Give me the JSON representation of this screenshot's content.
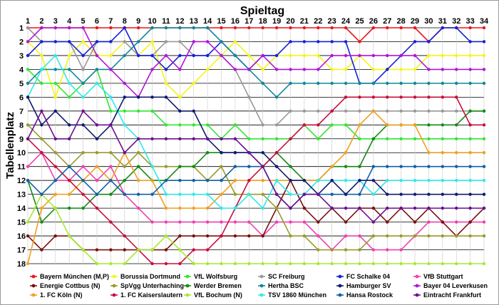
{
  "chart_data": {
    "type": "line",
    "title": "Spieltag",
    "xlabel": "Spieltag",
    "ylabel": "Tabellenplatz",
    "x": [
      1,
      2,
      3,
      4,
      5,
      6,
      7,
      8,
      9,
      10,
      11,
      12,
      13,
      14,
      15,
      16,
      17,
      18,
      19,
      20,
      21,
      22,
      23,
      24,
      25,
      26,
      27,
      28,
      29,
      30,
      31,
      32,
      33,
      34
    ],
    "xlim": [
      1,
      34
    ],
    "ylim": [
      1,
      18
    ],
    "y_inverted": true,
    "grid": true,
    "legend_position": "bottom",
    "series": [
      {
        "name": "Bayern München (M,P)",
        "color": "#e8161c",
        "values": [
          1,
          1,
          1,
          1,
          1,
          1,
          1,
          1,
          1,
          1,
          1,
          1,
          1,
          1,
          1,
          1,
          1,
          1,
          1,
          1,
          1,
          1,
          1,
          1,
          2,
          1,
          1,
          1,
          1,
          2,
          1,
          1,
          1,
          1
        ]
      },
      {
        "name": "Borussia Dortmund",
        "color": "#f5f516",
        "values": [
          2,
          3,
          6,
          3,
          2,
          3,
          3,
          2,
          3,
          2,
          5,
          6,
          5,
          4,
          3,
          2,
          3,
          4,
          3,
          3,
          3,
          3,
          4,
          4,
          3,
          4,
          4,
          4,
          4,
          3,
          3,
          3,
          3,
          3
        ]
      },
      {
        "name": "VfL Wolfsburg",
        "color": "#33e533",
        "values": [
          4,
          5,
          5,
          6,
          5,
          4,
          7,
          7,
          7,
          7,
          8,
          8,
          8,
          8,
          9,
          8,
          9,
          9,
          9,
          9,
          8,
          9,
          8,
          8,
          9,
          9,
          9,
          9,
          9,
          9,
          9,
          9,
          9,
          9
        ]
      },
      {
        "name": "SC Freiburg",
        "color": "#999999",
        "values": [
          1,
          2,
          2,
          2,
          4,
          2,
          2,
          2,
          3,
          3,
          2,
          2,
          3,
          3,
          3,
          4,
          6,
          8,
          8,
          7,
          7,
          7,
          7,
          7,
          7,
          7,
          7,
          7,
          7,
          7,
          7,
          7,
          7,
          7
        ]
      },
      {
        "name": "FC Schalke 04",
        "color": "#1522d6",
        "values": [
          3,
          2,
          2,
          2,
          3,
          2,
          2,
          1,
          3,
          3,
          4,
          3,
          3,
          3,
          2,
          3,
          4,
          3,
          3,
          2,
          2,
          2,
          2,
          2,
          5,
          5,
          4,
          3,
          2,
          2,
          1,
          1,
          2,
          2
        ]
      },
      {
        "name": "VfB Stuttgart",
        "color": "#f040b0",
        "values": [
          11,
          10,
          12,
          12,
          11,
          12,
          11,
          13,
          14,
          15,
          15,
          15,
          15,
          15,
          15,
          15,
          15,
          16,
          15,
          15,
          15,
          16,
          17,
          16,
          16,
          17,
          17,
          17,
          16,
          15,
          15,
          15,
          15,
          15
        ]
      },
      {
        "name": "Energie Cottbus (N)",
        "color": "#7a1010",
        "values": [
          16,
          17,
          16,
          16,
          17,
          17,
          17,
          17,
          17,
          17,
          17,
          16,
          16,
          16,
          16,
          16,
          16,
          16,
          14,
          12,
          14,
          15,
          14,
          15,
          14,
          14,
          15,
          14,
          15,
          14,
          15,
          16,
          15,
          14
        ]
      },
      {
        "name": "SpVgg Unterhaching",
        "color": "#9a9a2a",
        "values": [
          8,
          9,
          10,
          11,
          10,
          10,
          10,
          11,
          10,
          11,
          11,
          11,
          11,
          12,
          11,
          13,
          13,
          13,
          14,
          16,
          16,
          17,
          17,
          17,
          17,
          16,
          16,
          16,
          16,
          16,
          16,
          16,
          16,
          16
        ]
      },
      {
        "name": "Werder Bremen",
        "color": "#148a14",
        "values": [
          12,
          15,
          14,
          14,
          14,
          13,
          13,
          12,
          11,
          12,
          12,
          11,
          11,
          10,
          10,
          10,
          10,
          11,
          10,
          11,
          12,
          12,
          11,
          11,
          11,
          9,
          8,
          8,
          8,
          8,
          8,
          8,
          7,
          7
        ]
      },
      {
        "name": "Hertha BSC",
        "color": "#11889a",
        "values": [
          5,
          4,
          4,
          4,
          5,
          4,
          4,
          3,
          2,
          1,
          1,
          1,
          1,
          1,
          2,
          3,
          4,
          5,
          6,
          5,
          5,
          5,
          5,
          5,
          5,
          5,
          5,
          5,
          5,
          5,
          5,
          5,
          5,
          5
        ]
      },
      {
        "name": "Bayer 04 Leverkusen",
        "color": "#b016d8",
        "values": [
          2,
          1,
          1,
          1,
          1,
          3,
          4,
          5,
          6,
          4,
          3,
          4,
          2,
          2,
          3,
          4,
          4,
          3,
          4,
          4,
          4,
          4,
          3,
          3,
          3,
          3,
          3,
          3,
          3,
          4,
          4,
          4,
          4,
          4
        ]
      },
      {
        "name": "1. FC Köln (N)",
        "color": "#f0a020",
        "values": [
          18,
          14,
          13,
          13,
          12,
          11,
          12,
          10,
          12,
          12,
          14,
          14,
          14,
          14,
          13,
          12,
          12,
          12,
          12,
          12,
          12,
          12,
          11,
          10,
          8,
          7,
          8,
          8,
          8,
          10,
          10,
          10,
          10,
          10
        ]
      },
      {
        "name": "1. FC Kaiserslautern",
        "color": "#c80e3e",
        "values": [
          9,
          10,
          11,
          12,
          13,
          14,
          15,
          16,
          17,
          18,
          18,
          18,
          17,
          17,
          16,
          14,
          12,
          11,
          10,
          9,
          8,
          8,
          7,
          6,
          6,
          6,
          6,
          6,
          6,
          6,
          6,
          6,
          8,
          8
        ]
      },
      {
        "name": "VfL Bochum (N)",
        "color": "#a8e830",
        "values": [
          15,
          13,
          14,
          16,
          17,
          18,
          18,
          18,
          17,
          17,
          16,
          17,
          18,
          18,
          18,
          18,
          18,
          18,
          18,
          18,
          18,
          18,
          18,
          18,
          18,
          18,
          18,
          18,
          18,
          18,
          18,
          18,
          18,
          18
        ]
      },
      {
        "name": "TSV 1860 München",
        "color": "#30e8e8",
        "values": [
          6,
          4,
          3,
          5,
          6,
          5,
          6,
          8,
          9,
          11,
          13,
          13,
          13,
          13,
          14,
          14,
          13,
          14,
          12,
          13,
          13,
          12,
          12,
          12,
          12,
          13,
          12,
          12,
          12,
          12,
          12,
          12,
          12,
          12
        ]
      },
      {
        "name": "Hansa Rostock",
        "color": "#1060a8",
        "values": [
          12,
          13,
          12,
          11,
          12,
          13,
          12,
          13,
          13,
          13,
          12,
          12,
          12,
          12,
          12,
          11,
          11,
          11,
          13,
          14,
          13,
          13,
          13,
          13,
          13,
          11,
          11,
          11,
          11,
          11,
          11,
          11,
          11,
          11
        ]
      },
      {
        "name": "Hamburger SV",
        "color": "#101a6e",
        "values": [
          6,
          8,
          7,
          8,
          8,
          9,
          8,
          6,
          6,
          6,
          6,
          7,
          7,
          9,
          10,
          10,
          10,
          10,
          11,
          12,
          12,
          13,
          12,
          13,
          12,
          12,
          13,
          13,
          13,
          13,
          13,
          13,
          13,
          13
        ]
      },
      {
        "name": "Eintracht Frankfurt",
        "color": "#6a1090",
        "values": [
          9,
          7,
          9,
          9,
          7,
          8,
          8,
          10,
          9,
          9,
          9,
          9,
          9,
          9,
          9,
          9,
          10,
          11,
          13,
          14,
          13,
          13,
          14,
          14,
          14,
          15,
          14,
          14,
          14,
          14,
          14,
          14,
          14,
          14
        ]
      }
    ],
    "legend": [
      [
        "Bayern München (M,P)",
        "Borussia Dortmund",
        "VfL Wolfsburg",
        "SC Freiburg",
        "FC Schalke 04",
        "VfB Stuttgart"
      ],
      [
        "Energie Cottbus (N)",
        "SpVgg Unterhaching",
        "Werder Bremen",
        "Hertha BSC",
        "Hamburger SV",
        "Bayer 04 Leverkusen"
      ],
      [
        "1. FC Köln (N)",
        "1. FC Kaiserslautern",
        "VfL Bochum (N)",
        "TSV 1860 München",
        "Hansa Rostock",
        "Eintracht Frankfurt"
      ]
    ]
  }
}
